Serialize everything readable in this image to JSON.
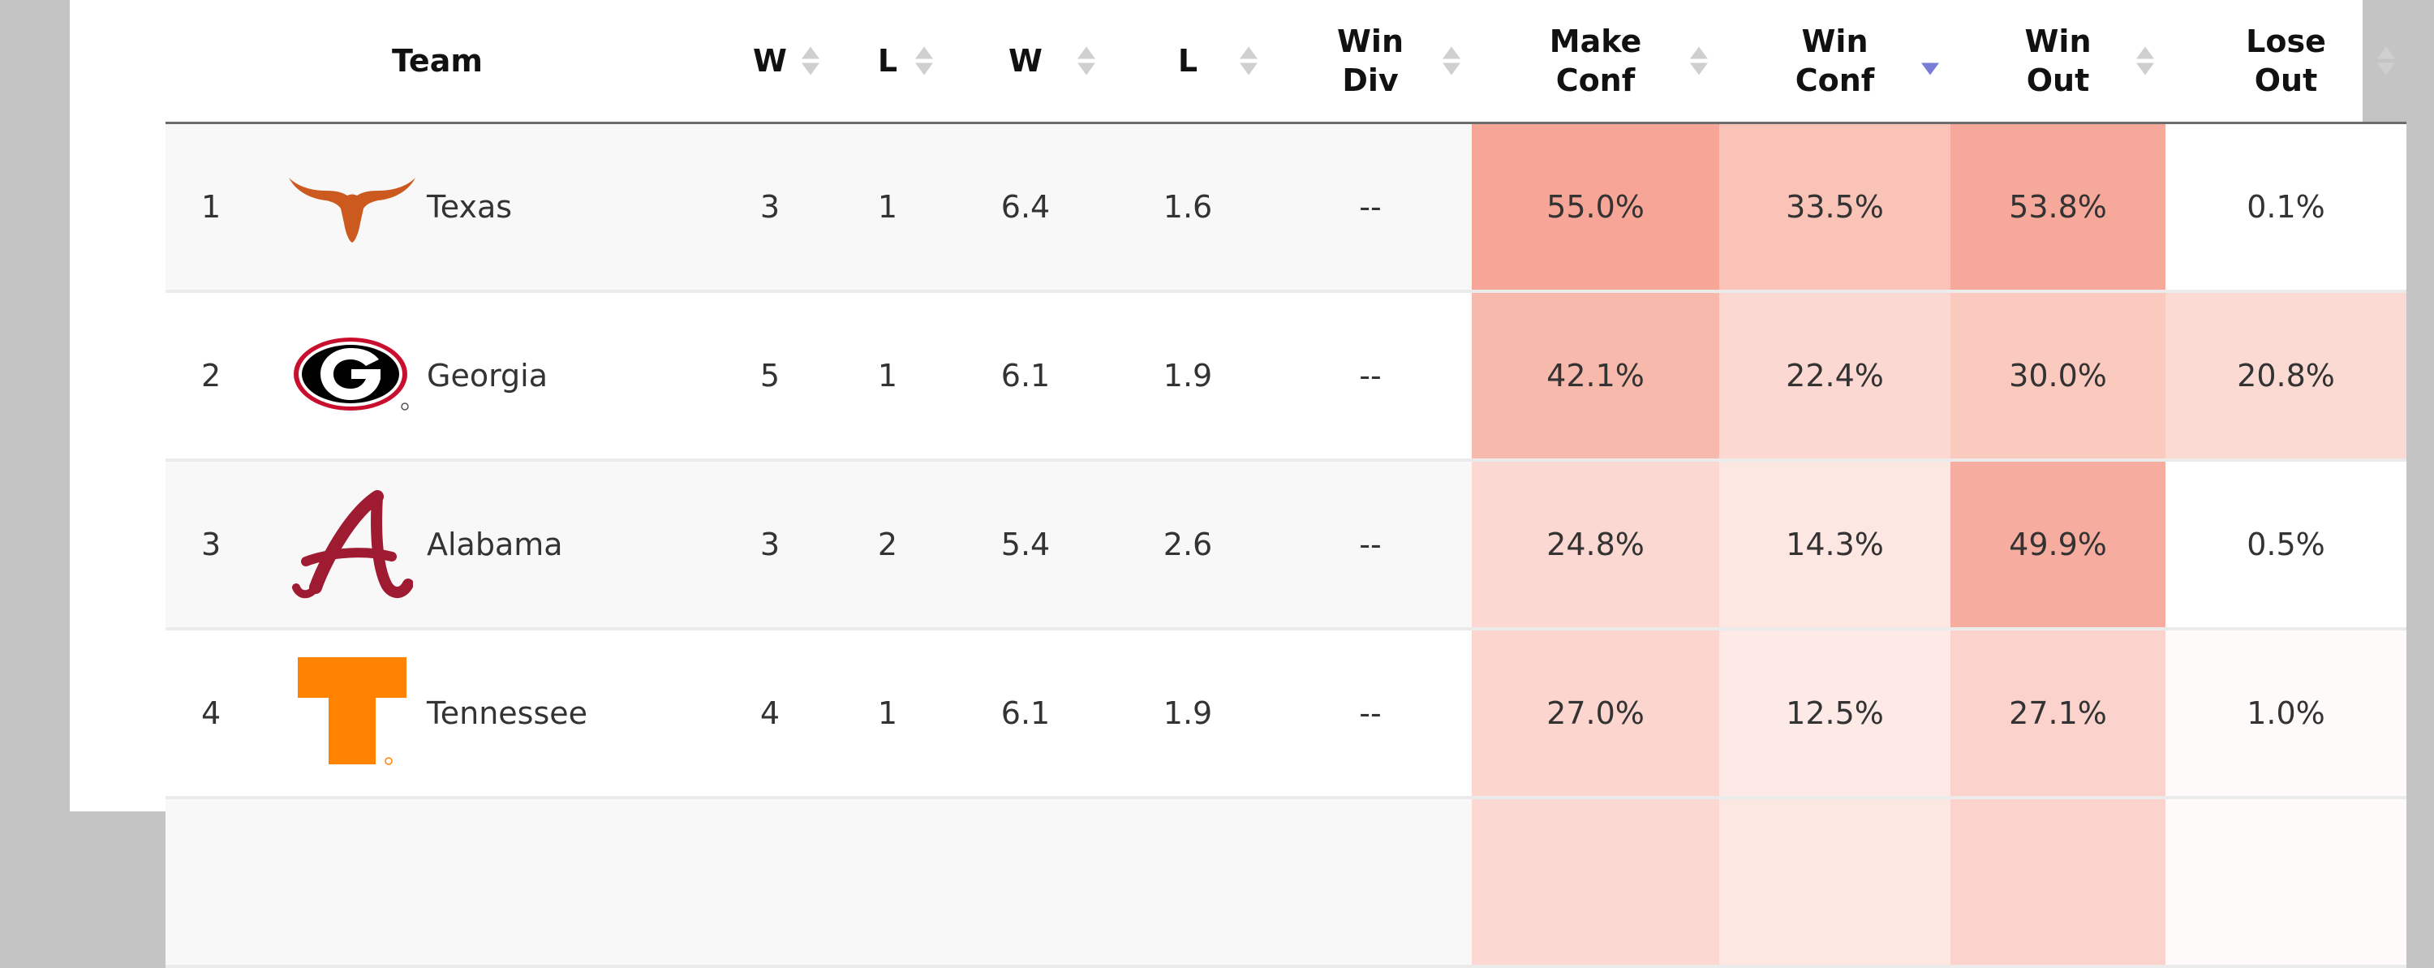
{
  "table": {
    "headers": {
      "team": "Team",
      "conf_w": "W",
      "conf_l": "L",
      "proj_w": "W",
      "proj_l": "L",
      "win_div": [
        "Win",
        "Div"
      ],
      "make_conf": [
        "Make",
        "Conf"
      ],
      "win_conf": [
        "Win",
        "Conf"
      ],
      "win_out": [
        "Win",
        "Out"
      ],
      "lose_out": [
        "Lose",
        "Out"
      ]
    },
    "sorted_column": "win_conf",
    "rows": [
      {
        "rank": "1",
        "team": "Texas",
        "logo": "longhorn-logo-icon",
        "conf_w": "3",
        "conf_l": "1",
        "proj_w": "6.4",
        "proj_l": "1.6",
        "win_div": "--",
        "make_conf": "55.0%",
        "win_conf": "33.5%",
        "win_out": "53.8%",
        "lose_out": "0.1%"
      },
      {
        "rank": "2",
        "team": "Georgia",
        "logo": "georgia-g-logo-icon",
        "conf_w": "5",
        "conf_l": "1",
        "proj_w": "6.1",
        "proj_l": "1.9",
        "win_div": "--",
        "make_conf": "42.1%",
        "win_conf": "22.4%",
        "win_out": "30.0%",
        "lose_out": "20.8%"
      },
      {
        "rank": "3",
        "team": "Alabama",
        "logo": "alabama-script-a-logo-icon",
        "conf_w": "3",
        "conf_l": "2",
        "proj_w": "5.4",
        "proj_l": "2.6",
        "win_div": "--",
        "make_conf": "24.8%",
        "win_conf": "14.3%",
        "win_out": "49.9%",
        "lose_out": "0.5%"
      },
      {
        "rank": "4",
        "team": "Tennessee",
        "logo": "tennessee-power-t-logo-icon",
        "conf_w": "4",
        "conf_l": "1",
        "proj_w": "6.1",
        "proj_l": "1.9",
        "win_div": "--",
        "make_conf": "27.0%",
        "win_conf": "12.5%",
        "win_out": "27.1%",
        "lose_out": "1.0%"
      }
    ],
    "colors": {
      "heat_base": "#f4a093",
      "sort_active": "#7b7bd8",
      "texas_orange": "#cc5a1e",
      "georgia_red": "#c8102e",
      "alabama_crimson": "#9e1b32",
      "tennessee_orange": "#ff8200"
    }
  }
}
